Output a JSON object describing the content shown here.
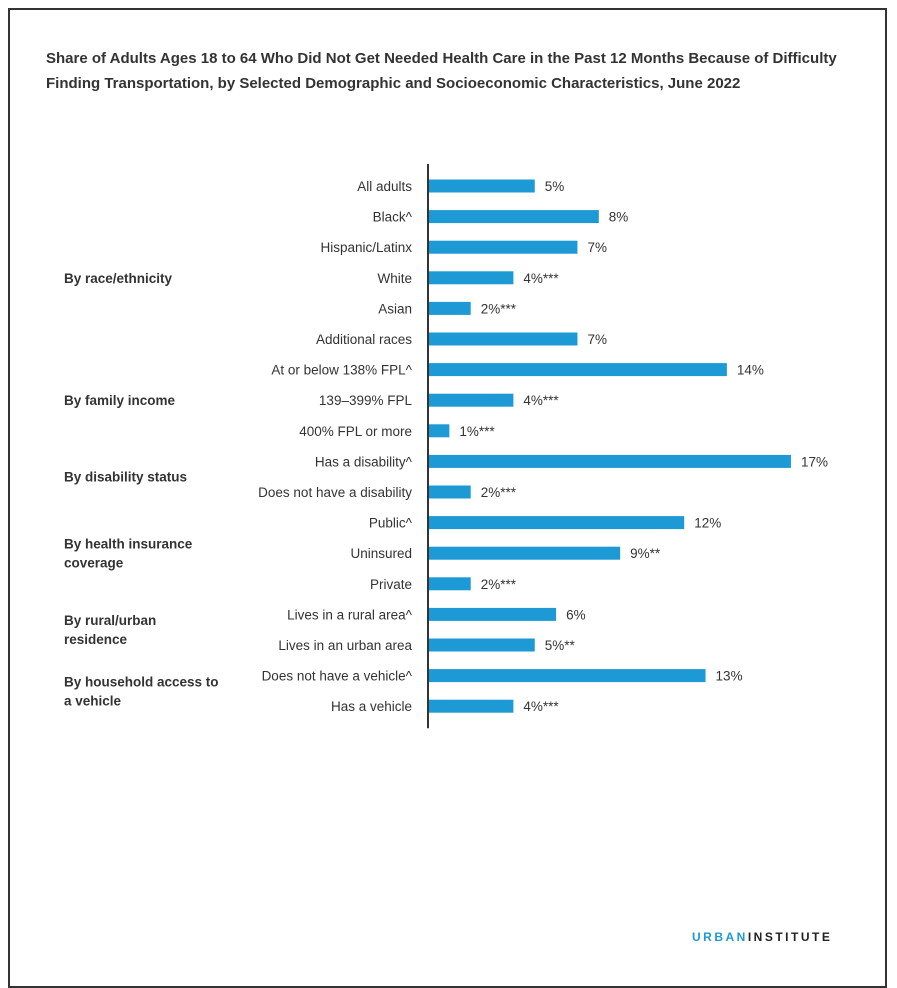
{
  "chart_data": {
    "type": "bar",
    "orientation": "horizontal",
    "title": "Share of Adults Ages 18 to 64 Who Did Not Get Needed Health Care in the Past 12 Months Because of Difficulty Finding Transportation, by Selected Demographic and Socioeconomic Characteristics, June 2022",
    "bar_color": "#1d9ad6",
    "xlim": [
      0,
      17
    ],
    "grid": false,
    "groups": [
      {
        "name": "",
        "items": [
          {
            "category": "All adults",
            "value": 5,
            "label": "5%"
          }
        ]
      },
      {
        "name": "By race/ethnicity",
        "items": [
          {
            "category": "Black^",
            "value": 8,
            "label": "8%"
          },
          {
            "category": "Hispanic/Latinx",
            "value": 7,
            "label": "7%"
          },
          {
            "category": "White",
            "value": 4,
            "label": "4%***"
          },
          {
            "category": "Asian",
            "value": 2,
            "label": "2%***"
          },
          {
            "category": "Additional races",
            "value": 7,
            "label": "7%"
          }
        ]
      },
      {
        "name": "By family income",
        "items": [
          {
            "category": "At or below 138% FPL^",
            "value": 14,
            "label": "14%"
          },
          {
            "category": "139–399% FPL",
            "value": 4,
            "label": "4%***"
          },
          {
            "category": "400% FPL or more",
            "value": 1,
            "label": "1%***"
          }
        ]
      },
      {
        "name": "By disability status",
        "items": [
          {
            "category": "Has a disability^",
            "value": 17,
            "label": "17%"
          },
          {
            "category": "Does not have a disability",
            "value": 2,
            "label": "2%***"
          }
        ]
      },
      {
        "name": "By health insurance coverage",
        "items": [
          {
            "category": "Public^",
            "value": 12,
            "label": "12%"
          },
          {
            "category": "Uninsured",
            "value": 9,
            "label": "9%**"
          },
          {
            "category": "Private",
            "value": 2,
            "label": "2%***"
          }
        ]
      },
      {
        "name": "By rural/urban residence",
        "items": [
          {
            "category": "Lives in a rural area^",
            "value": 6,
            "label": "6%"
          },
          {
            "category": "Lives in an urban area",
            "value": 5,
            "label": "5%**"
          }
        ]
      },
      {
        "name": "By household access to a vehicle",
        "items": [
          {
            "category": "Does not have a vehicle^",
            "value": 13,
            "label": "13%"
          },
          {
            "category": "Has a vehicle",
            "value": 4,
            "label": "4%***"
          }
        ]
      }
    ]
  },
  "brand": {
    "part1": "URBAN",
    "part2": "INSTITUTE"
  }
}
